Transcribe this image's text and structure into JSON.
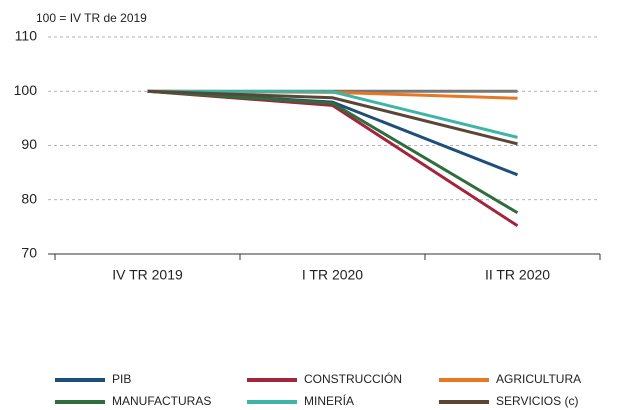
{
  "chart_data": {
    "type": "line",
    "subtitle": "100 = IV TR de 2019",
    "categories": [
      "IV TR 2019",
      "I TR 2020",
      "II TR 2020"
    ],
    "ylim": [
      70,
      110
    ],
    "yticks": [
      70,
      80,
      90,
      100,
      110
    ],
    "grid": true,
    "series": [
      {
        "color": "#777777",
        "values": [
          100,
          100,
          100
        ]
      },
      {
        "name": "PIB",
        "color": "#1f4e79",
        "values": [
          100,
          98.0,
          84.6
        ]
      },
      {
        "name": "CONSTRUCCIÓN",
        "color": "#a3243b",
        "values": [
          100,
          97.4,
          75.2
        ]
      },
      {
        "name": "AGRICULTURA",
        "color": "#e87722",
        "values": [
          100,
          99.8,
          98.7
        ]
      },
      {
        "name": "MANUFACTURAS",
        "color": "#2e6e3e",
        "values": [
          100,
          97.8,
          77.6
        ]
      },
      {
        "name": "MINERÍA",
        "color": "#3cb5a8",
        "values": [
          100,
          99.9,
          91.5
        ]
      },
      {
        "name": "SERVICIOS (c)",
        "color": "#5b4636",
        "values": [
          100,
          98.8,
          90.3
        ]
      }
    ]
  }
}
